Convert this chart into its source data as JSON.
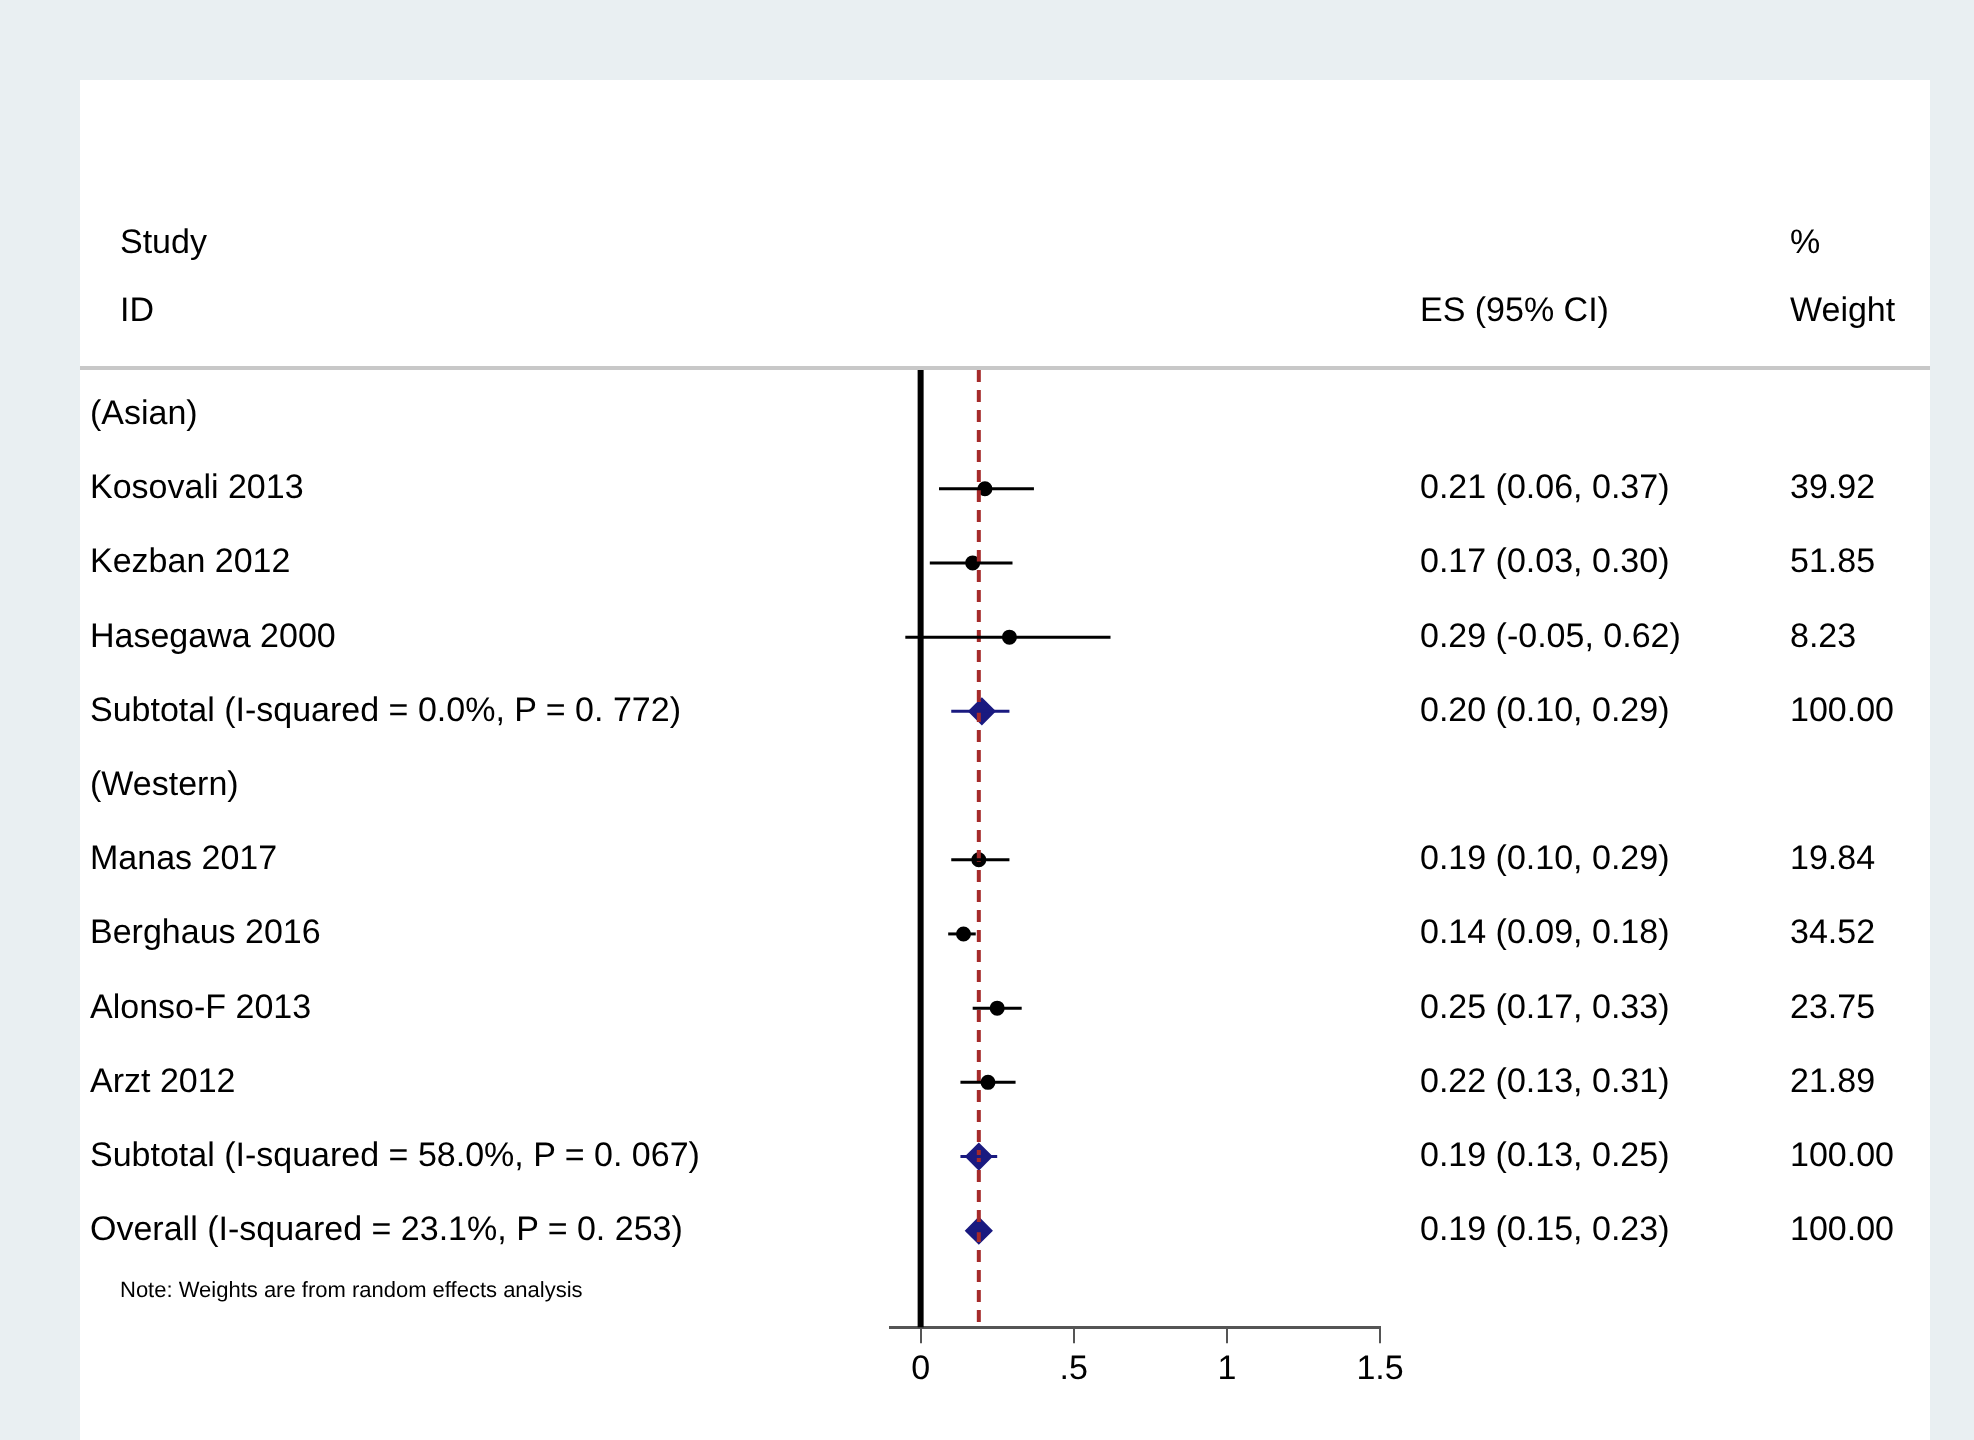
{
  "chart_data": {
    "type": "scatter",
    "orientation": "horizontal",
    "categories": [
      "(Asian)",
      "Kosovali 2013",
      "Kezban 2012",
      "Hasegawa 2000",
      "Subtotal (I-squared = 0.0%, P = 0. 772)",
      "(Western)",
      "Manas 2017",
      "Berghaus 2016",
      "Alonso-F 2013",
      "Arzt 2012",
      "Subtotal (I-squared = 58.0%, P = 0. 067)",
      "Overall (I-squared = 23.1%, P = 0. 253)"
    ],
    "series": [
      {
        "color": "#000000",
        "marker": "circle",
        "values": [
          null,
          0.21,
          0.17,
          0.29,
          null,
          null,
          0.19,
          0.14,
          0.25,
          0.22,
          null,
          null
        ],
        "errors": [
          null,
          [
            0.06,
            0.37
          ],
          [
            0.03,
            0.3
          ],
          [
            -0.05,
            0.62
          ],
          null,
          null,
          [
            0.1,
            0.29
          ],
          [
            0.09,
            0.18
          ],
          [
            0.17,
            0.33
          ],
          [
            0.13,
            0.31
          ],
          null,
          null
        ],
        "value_labels": [
          null,
          "0.21 (0.06, 0.37)",
          "0.17 (0.03, 0.30)",
          "0.29 (-0.05, 0.62)",
          null,
          null,
          "0.19 (0.10, 0.29)",
          "0.14 (0.09, 0.18)",
          "0.25 (0.17, 0.33)",
          "0.22 (0.13, 0.31)",
          null,
          null
        ]
      },
      {
        "color": "#1a1a80",
        "marker": "diamond",
        "values": [
          null,
          null,
          null,
          null,
          0.2,
          null,
          null,
          null,
          null,
          null,
          0.19,
          0.19
        ],
        "errors": [
          null,
          null,
          null,
          null,
          [
            0.1,
            0.29
          ],
          null,
          null,
          null,
          null,
          null,
          [
            0.13,
            0.25
          ],
          [
            0.15,
            0.23
          ]
        ],
        "value_labels": [
          null,
          null,
          null,
          null,
          null,
          null,
          null,
          null,
          null,
          null,
          null,
          null
        ]
      }
    ],
    "xlim": [
      -0.1,
      1.5
    ],
    "xticks": [
      0,
      {
        "value": 0.5,
        "label": ".5"
      },
      1,
      1.5
    ],
    "ref_lines": [
      {
        "axis": "x",
        "value": 0,
        "color": "#000000",
        "line_style": "solid"
      },
      {
        "axis": "x",
        "value": 0.19,
        "color": "#a52a2a",
        "line_style": "dashed"
      }
    ],
    "annotations": [
      "Study",
      "ID",
      "ES (95% CI)",
      "%",
      "Weight",
      "Note: Weights are from random effects analysis",
      "39.92",
      "51.85",
      "8.23",
      "100.00",
      "19.84",
      "34.52",
      "23.75",
      "21.89",
      "100.00",
      "100.00",
      "0.20 (0.10, 0.29)",
      "0.19 (0.13, 0.25)",
      "0.19 (0.15, 0.23)"
    ],
    "grid": false,
    "legend": false
  }
}
